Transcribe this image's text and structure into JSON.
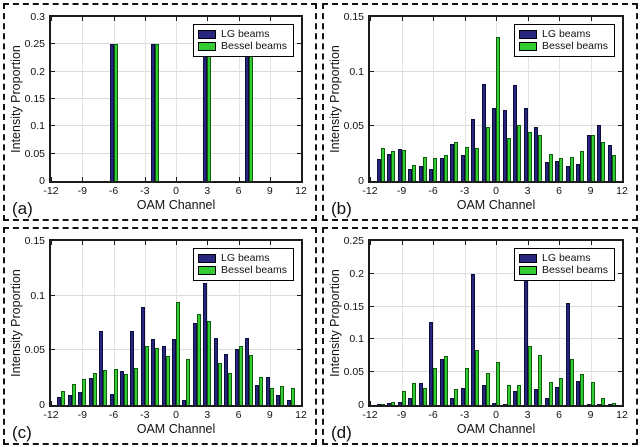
{
  "legend": {
    "lg": "LG beams",
    "bessel": "Bessel beams"
  },
  "colors": {
    "lg": "#26267E",
    "bessel": "#33CC33",
    "lg_edge": "#0D0D3C",
    "bessel_edge": "#0E5E0E",
    "grid": "#DCDCDC",
    "axis": "#1C1C1C"
  },
  "chart_data": [
    {
      "type": "bar",
      "panel_label": "(a)",
      "xlabel": "OAM Channel",
      "ylabel": "Intensity Proportion",
      "xlim": [
        -12,
        12
      ],
      "ylim": [
        0,
        0.3
      ],
      "xticks": [
        -12,
        -9,
        -6,
        -3,
        0,
        3,
        6,
        9,
        12
      ],
      "ytick_values": [
        0,
        0.05,
        0.1,
        0.15,
        0.2,
        0.25,
        0.3
      ],
      "ytick_labels": [
        "0",
        "0.05",
        "0.1",
        "0.15",
        "0.2",
        "0.25",
        "0.3"
      ],
      "grid": true,
      "legend_position": "top-right",
      "categories": [
        -6,
        -2,
        3,
        7
      ],
      "series": [
        {
          "name": "LG beams",
          "values": [
            0.25,
            0.25,
            0.25,
            0.25
          ]
        },
        {
          "name": "Bessel beams",
          "values": [
            0.25,
            0.25,
            0.25,
            0.25
          ]
        }
      ]
    },
    {
      "type": "bar",
      "panel_label": "(b)",
      "xlabel": "OAM Channel",
      "ylabel": "Intensity Proportion",
      "xlim": [
        -12,
        12
      ],
      "ylim": [
        0,
        0.15
      ],
      "xticks": [
        -12,
        -9,
        -6,
        -3,
        0,
        3,
        6,
        9,
        12
      ],
      "ytick_values": [
        0,
        0.05,
        0.1,
        0.15
      ],
      "ytick_labels": [
        "0",
        "0.05",
        "0.1",
        "0.15"
      ],
      "grid": true,
      "legend_position": "top-right",
      "categories": [
        -11,
        -10,
        -9,
        -8,
        -7,
        -6,
        -5,
        -4,
        -3,
        -2,
        -1,
        0,
        1,
        2,
        3,
        4,
        5,
        6,
        7,
        8,
        9,
        10,
        11
      ],
      "series": [
        {
          "name": "LG beams",
          "values": [
            0.02,
            0.025,
            0.029,
            0.011,
            0.014,
            0.011,
            0.021,
            0.034,
            0.024,
            0.057,
            0.089,
            0.067,
            0.065,
            0.088,
            0.067,
            0.049,
            0.017,
            0.018,
            0.014,
            0.016,
            0.042,
            0.051,
            0.033
          ]
        },
        {
          "name": "Bessel beams",
          "values": [
            0.03,
            0.027,
            0.028,
            0.015,
            0.022,
            0.021,
            0.024,
            0.036,
            0.031,
            0.03,
            0.049,
            0.132,
            0.039,
            0.051,
            0.045,
            0.042,
            0.025,
            0.021,
            0.022,
            0.027,
            0.042,
            0.036,
            0.024
          ]
        }
      ]
    },
    {
      "type": "bar",
      "panel_label": "(c)",
      "xlabel": "OAM Channel",
      "ylabel": "Intensity Proportion",
      "xlim": [
        -12,
        12
      ],
      "ylim": [
        0,
        0.15
      ],
      "xticks": [
        -12,
        -9,
        -6,
        -3,
        0,
        3,
        6,
        9,
        12
      ],
      "ytick_values": [
        0,
        0.05,
        0.1,
        0.15
      ],
      "ytick_labels": [
        "0",
        "0.05",
        "0.1",
        "0.15"
      ],
      "grid": true,
      "legend_position": "top-right",
      "categories": [
        -11,
        -10,
        -9,
        -8,
        -7,
        -6,
        -5,
        -4,
        -3,
        -2,
        -1,
        0,
        1,
        2,
        3,
        4,
        5,
        6,
        7,
        8,
        9,
        10,
        11
      ],
      "series": [
        {
          "name": "LG beams",
          "values": [
            0.007,
            0.009,
            0.012,
            0.025,
            0.068,
            0.01,
            0.031,
            0.068,
            0.09,
            0.06,
            0.054,
            0.06,
            0.005,
            0.075,
            0.112,
            0.061,
            0.047,
            0.051,
            0.061,
            0.018,
            0.026,
            0.009,
            0.005
          ]
        },
        {
          "name": "Bessel beams",
          "values": [
            0.013,
            0.019,
            0.024,
            0.029,
            0.032,
            0.033,
            0.028,
            0.034,
            0.054,
            0.052,
            0.045,
            0.094,
            0.042,
            0.083,
            0.077,
            0.038,
            0.029,
            0.054,
            0.046,
            0.026,
            0.016,
            0.017,
            0.016
          ]
        }
      ]
    },
    {
      "type": "bar",
      "panel_label": "(d)",
      "xlabel": "OAM Channel",
      "ylabel": "Intensity Proportion",
      "xlim": [
        -12,
        12
      ],
      "ylim": [
        0,
        0.25
      ],
      "xticks": [
        -12,
        -9,
        -6,
        -3,
        0,
        3,
        6,
        9,
        12
      ],
      "ytick_values": [
        0,
        0.05,
        0.1,
        0.15,
        0.2,
        0.25
      ],
      "ytick_labels": [
        "0",
        "0.05",
        "0.1",
        "0.15",
        "0.2",
        "0.25"
      ],
      "grid": true,
      "legend_position": "top-right",
      "categories": [
        -11,
        -10,
        -9,
        -8,
        -7,
        -6,
        -5,
        -4,
        -3,
        -2,
        -1,
        0,
        1,
        2,
        3,
        4,
        5,
        6,
        7,
        8,
        9,
        10,
        11
      ],
      "series": [
        {
          "name": "LG beams",
          "values": [
            0.001,
            0.003,
            0.004,
            0.01,
            0.033,
            0.127,
            0.07,
            0.01,
            0.026,
            0.199,
            0.03,
            0.003,
            0.002,
            0.021,
            0.195,
            0.024,
            0.011,
            0.027,
            0.155,
            0.036,
            0.002,
            0.001,
            0.001
          ]
        },
        {
          "name": "Bessel beams",
          "values": [
            0.002,
            0.004,
            0.021,
            0.034,
            0.026,
            0.057,
            0.075,
            0.025,
            0.056,
            0.084,
            0.049,
            0.065,
            0.031,
            0.031,
            0.09,
            0.077,
            0.035,
            0.041,
            0.07,
            0.048,
            0.035,
            0.011,
            0.003
          ]
        }
      ]
    }
  ]
}
